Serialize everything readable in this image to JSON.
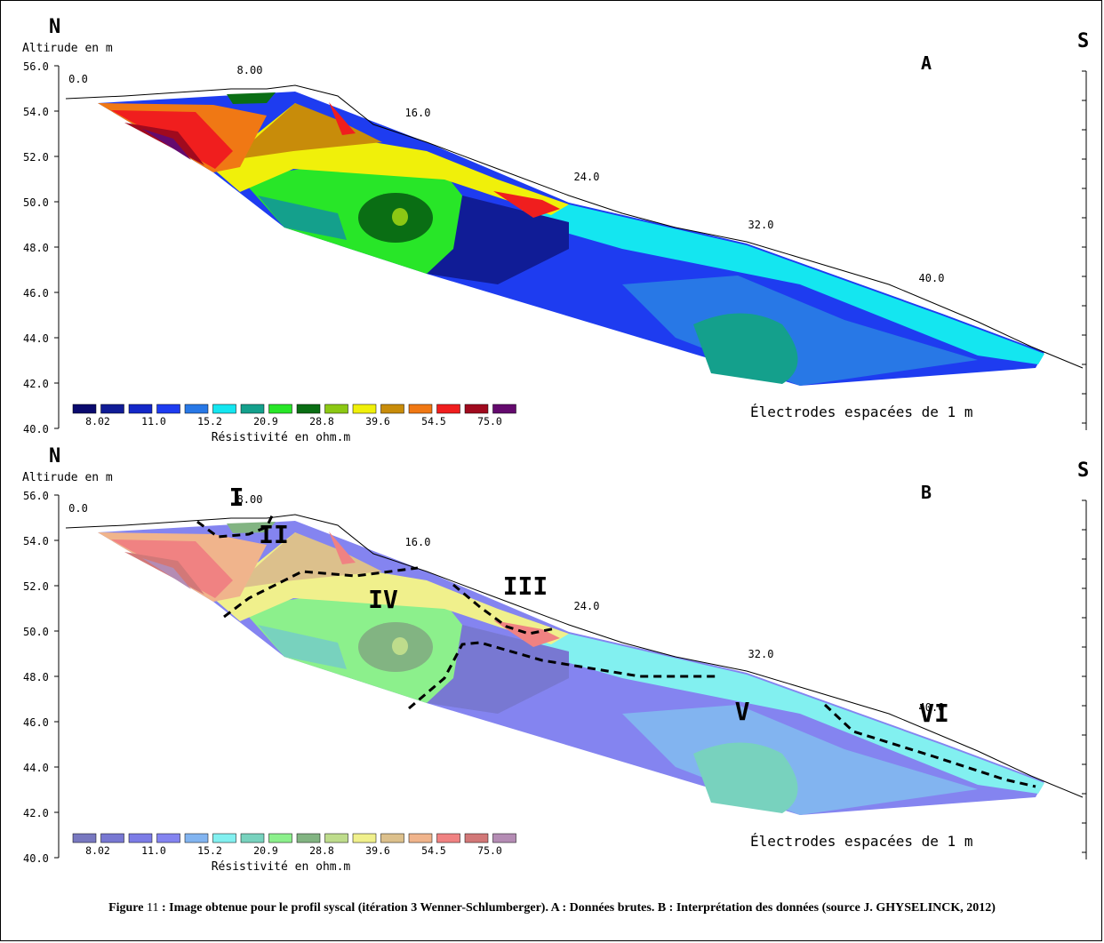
{
  "panels": [
    {
      "letter": "A",
      "north": "N",
      "south": "S",
      "yaxis_label": "Altirude en m",
      "y_ticks": [
        "56.0",
        "54.0",
        "52.0",
        "50.0",
        "48.0",
        "46.0",
        "44.0",
        "42.0",
        "40.0"
      ],
      "distance_ticks": [
        "0.0",
        "8.00",
        "16.0",
        "24.0",
        "32.0",
        "40.0"
      ],
      "legend_values": [
        "8.02",
        "11.0",
        "15.2",
        "20.9",
        "28.8",
        "39.6",
        "54.5",
        "75.0"
      ],
      "legend_title": "Résistivité en ohm.m",
      "electrode_note": "Électrodes espacées de 1 m",
      "legend_colors": [
        "#0a0a6e",
        "#101c96",
        "#1428c8",
        "#1e3cf0",
        "#2878e6",
        "#14e6f0",
        "#14a08c",
        "#28e628",
        "#0a6e14",
        "#8cc814",
        "#f0f00a",
        "#c88c0a",
        "#f07814",
        "#f01e1e",
        "#a00a1e",
        "#640a6e"
      ],
      "zones": []
    },
    {
      "letter": "B",
      "north": "N",
      "south": "S",
      "yaxis_label": "Altirude en m",
      "y_ticks": [
        "56.0",
        "54.0",
        "52.0",
        "50.0",
        "48.0",
        "46.0",
        "44.0",
        "42.0",
        "40.0"
      ],
      "distance_ticks": [
        "0.0",
        "8.00",
        "16.0",
        "24.0",
        "32.0",
        "40.0"
      ],
      "legend_values": [
        "8.02",
        "11.0",
        "15.2",
        "20.9",
        "28.8",
        "39.6",
        "54.5",
        "75.0"
      ],
      "legend_title": "Résistivité en ohm.m",
      "electrode_note": "Électrodes espacées de 1 m",
      "legend_colors": [
        "#7878c0",
        "#7878d2",
        "#7c7ce6",
        "#8484f0",
        "#82b4f0",
        "#82f0f0",
        "#78d2be",
        "#8cf08c",
        "#82b482",
        "#bedc8c",
        "#f0f08c",
        "#dcc08c",
        "#f0b48c",
        "#f08282",
        "#d27878",
        "#b48cb4"
      ],
      "zones": [
        "I",
        "II",
        "III",
        "IV",
        "V",
        "VI"
      ]
    }
  ],
  "caption": {
    "bold": "Figure",
    "number": "11",
    "text": ": Image obtenue pour le profil syscal (itération 3 Wenner-Schlumberger). A : Données brutes. B : Interprétation des données (source J. GHYSELINCK, 2012)"
  }
}
